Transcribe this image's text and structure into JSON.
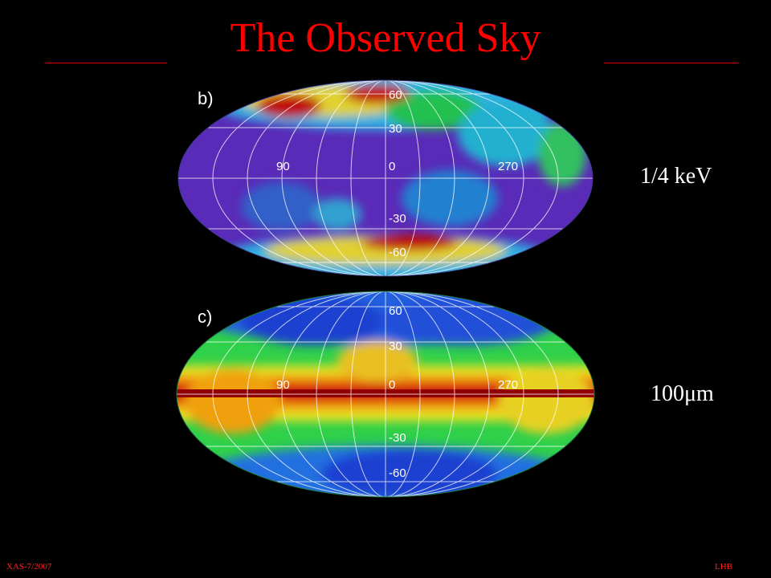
{
  "title": "The Observed Sky",
  "maps": [
    {
      "tag": "b)",
      "label": "1/4 keV",
      "lon_labels": [
        "90",
        "0",
        "270"
      ],
      "lat_labels": [
        "60",
        "30",
        "-30",
        "-60"
      ]
    },
    {
      "tag": "c)",
      "label": "100μm",
      "lon_labels": [
        "90",
        "0",
        "270"
      ],
      "lat_labels": [
        "60",
        "30",
        "-30",
        "-60"
      ]
    }
  ],
  "footer": {
    "left": "XAS-7/2007",
    "right": "LHB"
  },
  "colors": {
    "title": "#ff0000",
    "background": "#000000",
    "xray_base": "#5a2ab8",
    "ir_base": "#2fd04a",
    "hot": "#b00000"
  }
}
